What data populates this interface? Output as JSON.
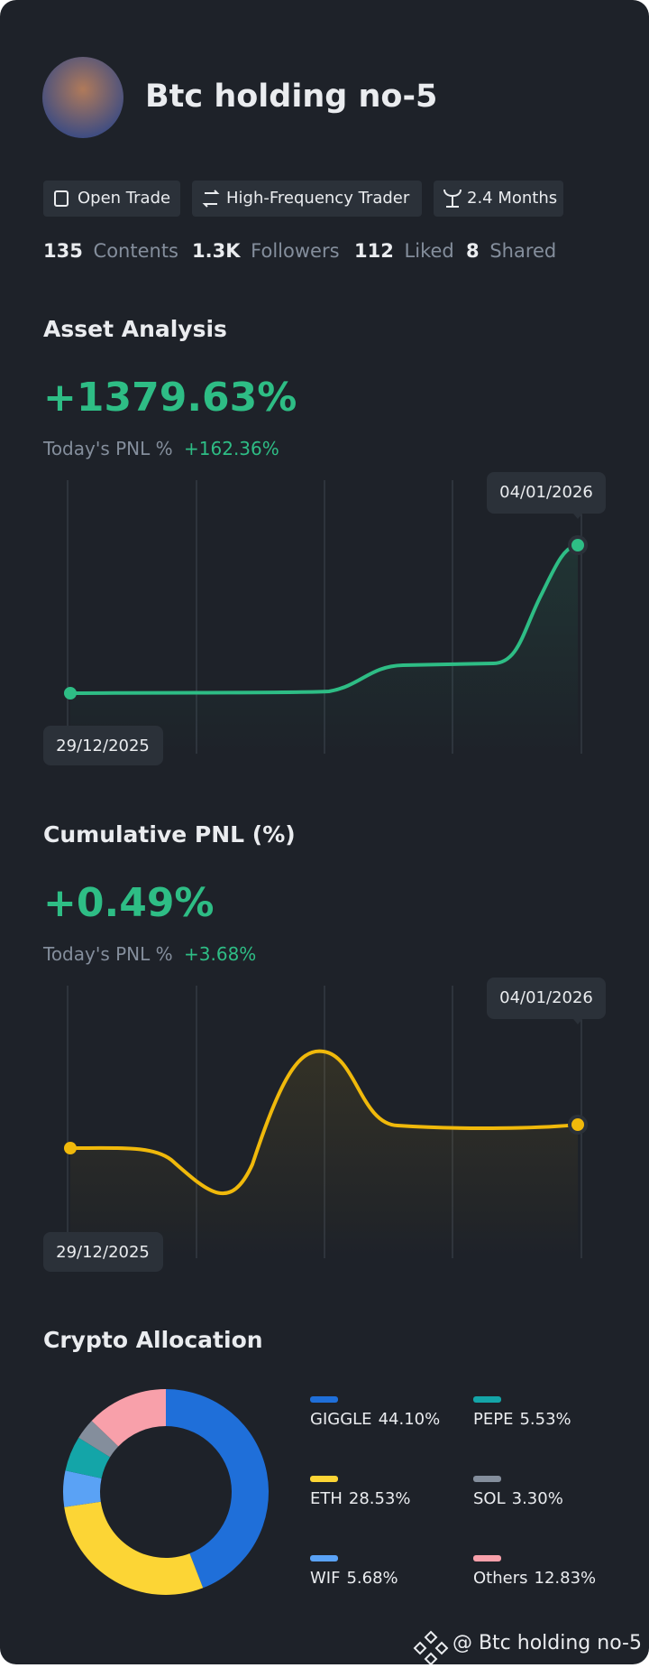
{
  "profile": {
    "name": "Btc holding no-5",
    "tags": [
      "Open Trade",
      "High-Frequency Trader",
      "2.4 Months"
    ],
    "stats": [
      {
        "value": "135",
        "label": "Contents"
      },
      {
        "value": "1.3K",
        "label": "Followers"
      },
      {
        "value": "112",
        "label": "Liked"
      },
      {
        "value": "8",
        "label": "Shared"
      }
    ]
  },
  "asset_analysis": {
    "title": "Asset Analysis",
    "value": "+1379.63%",
    "today_label": "Today's PNL %",
    "today_value": "+162.36%",
    "start_date": "29/12/2025",
    "end_date": "04/01/2026"
  },
  "cumulative_pnl": {
    "title": "Cumulative PNL (%)",
    "value": "+0.49%",
    "today_label": "Today's PNL %",
    "today_value": "+3.68%",
    "start_date": "29/12/2025",
    "end_date": "04/01/2026"
  },
  "allocation": {
    "title": "Crypto Allocation",
    "items": [
      {
        "name": "GIGGLE",
        "value": 44.1,
        "label": "44.10%",
        "color": "#1f6fd9"
      },
      {
        "name": "ETH",
        "value": 28.53,
        "label": "28.53%",
        "color": "#fcd535"
      },
      {
        "name": "WIF",
        "value": 5.68,
        "label": "5.68%",
        "color": "#5aa2f5"
      },
      {
        "name": "PEPE",
        "value": 5.53,
        "label": "5.53%",
        "color": "#14a5a8"
      },
      {
        "name": "SOL",
        "value": 3.3,
        "label": "3.30%",
        "color": "#848e9c"
      },
      {
        "name": "Others",
        "value": 12.83,
        "label": "12.83%",
        "color": "#f8a0aa"
      }
    ]
  },
  "footer": "@ Btc holding no-5"
}
